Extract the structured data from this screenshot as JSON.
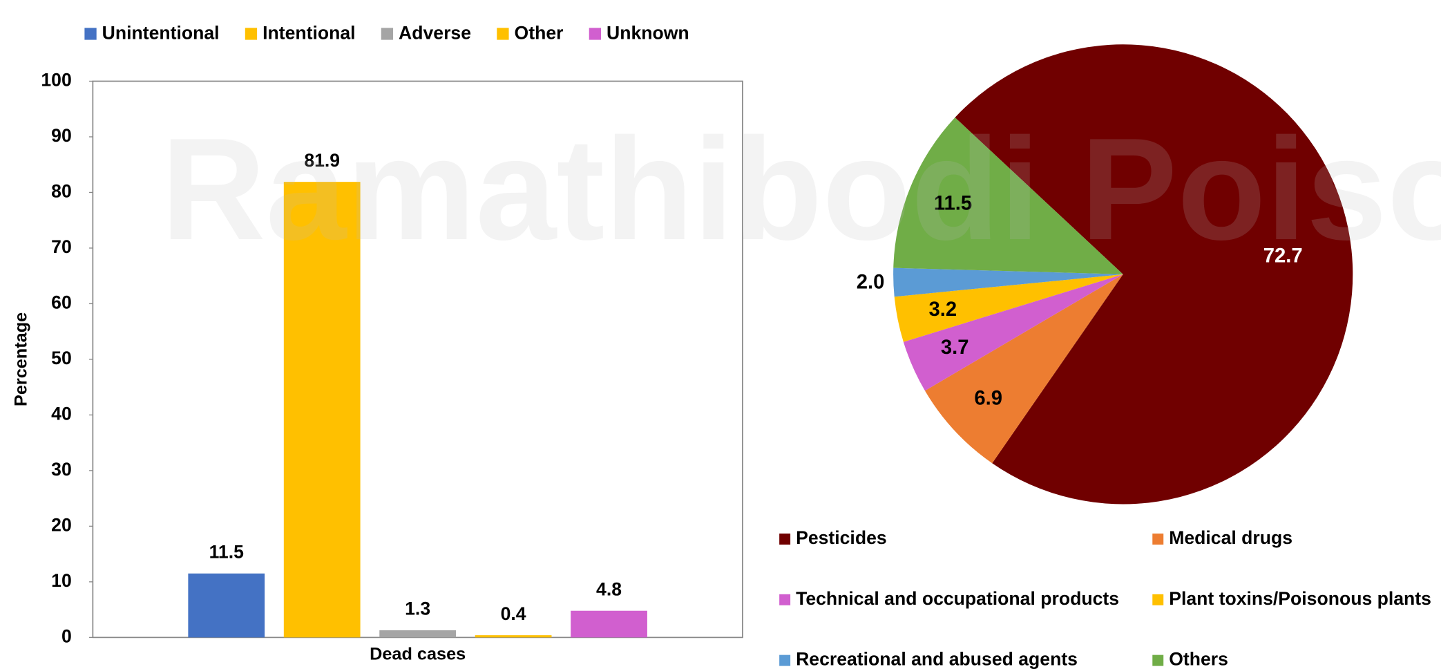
{
  "watermark": "Ramathibodi Poison",
  "chart_data": [
    {
      "type": "bar",
      "categories": [
        "Dead cases"
      ],
      "ylabel": "Percentage",
      "series": [
        {
          "name": "Unintentional",
          "color": "#4472c4",
          "values": [
            11.5
          ]
        },
        {
          "name": "Intentional",
          "color": "#ffc000",
          "values": [
            81.9
          ]
        },
        {
          "name": "Adverse",
          "color": "#a5a5a5",
          "values": [
            1.3
          ]
        },
        {
          "name": "Other",
          "color": "#ffc000",
          "values": [
            0.4
          ]
        },
        {
          "name": "Unknown",
          "color": "#d15fcf",
          "values": [
            4.8
          ]
        }
      ],
      "ylim": [
        0,
        100
      ],
      "yticks": [
        0,
        10,
        20,
        30,
        40,
        50,
        60,
        70,
        80,
        90,
        100
      ],
      "legend": "top"
    },
    {
      "type": "pie",
      "categories": [
        "Pesticides",
        "Medical drugs",
        "Technical and occupational products",
        "Plant toxins/Poisonous plants",
        "Recreational and abused agents",
        "Others"
      ],
      "values": [
        72.7,
        6.9,
        3.7,
        3.2,
        2.0,
        11.5
      ],
      "value_labels": [
        "72.7",
        "6.9",
        "3.7",
        "3.2",
        "2.0",
        "11.5"
      ],
      "colors": [
        "#700000",
        "#ed7d31",
        "#d15fcf",
        "#ffc000",
        "#5b9bd5",
        "#70ad47"
      ],
      "legend": "bottom"
    }
  ]
}
